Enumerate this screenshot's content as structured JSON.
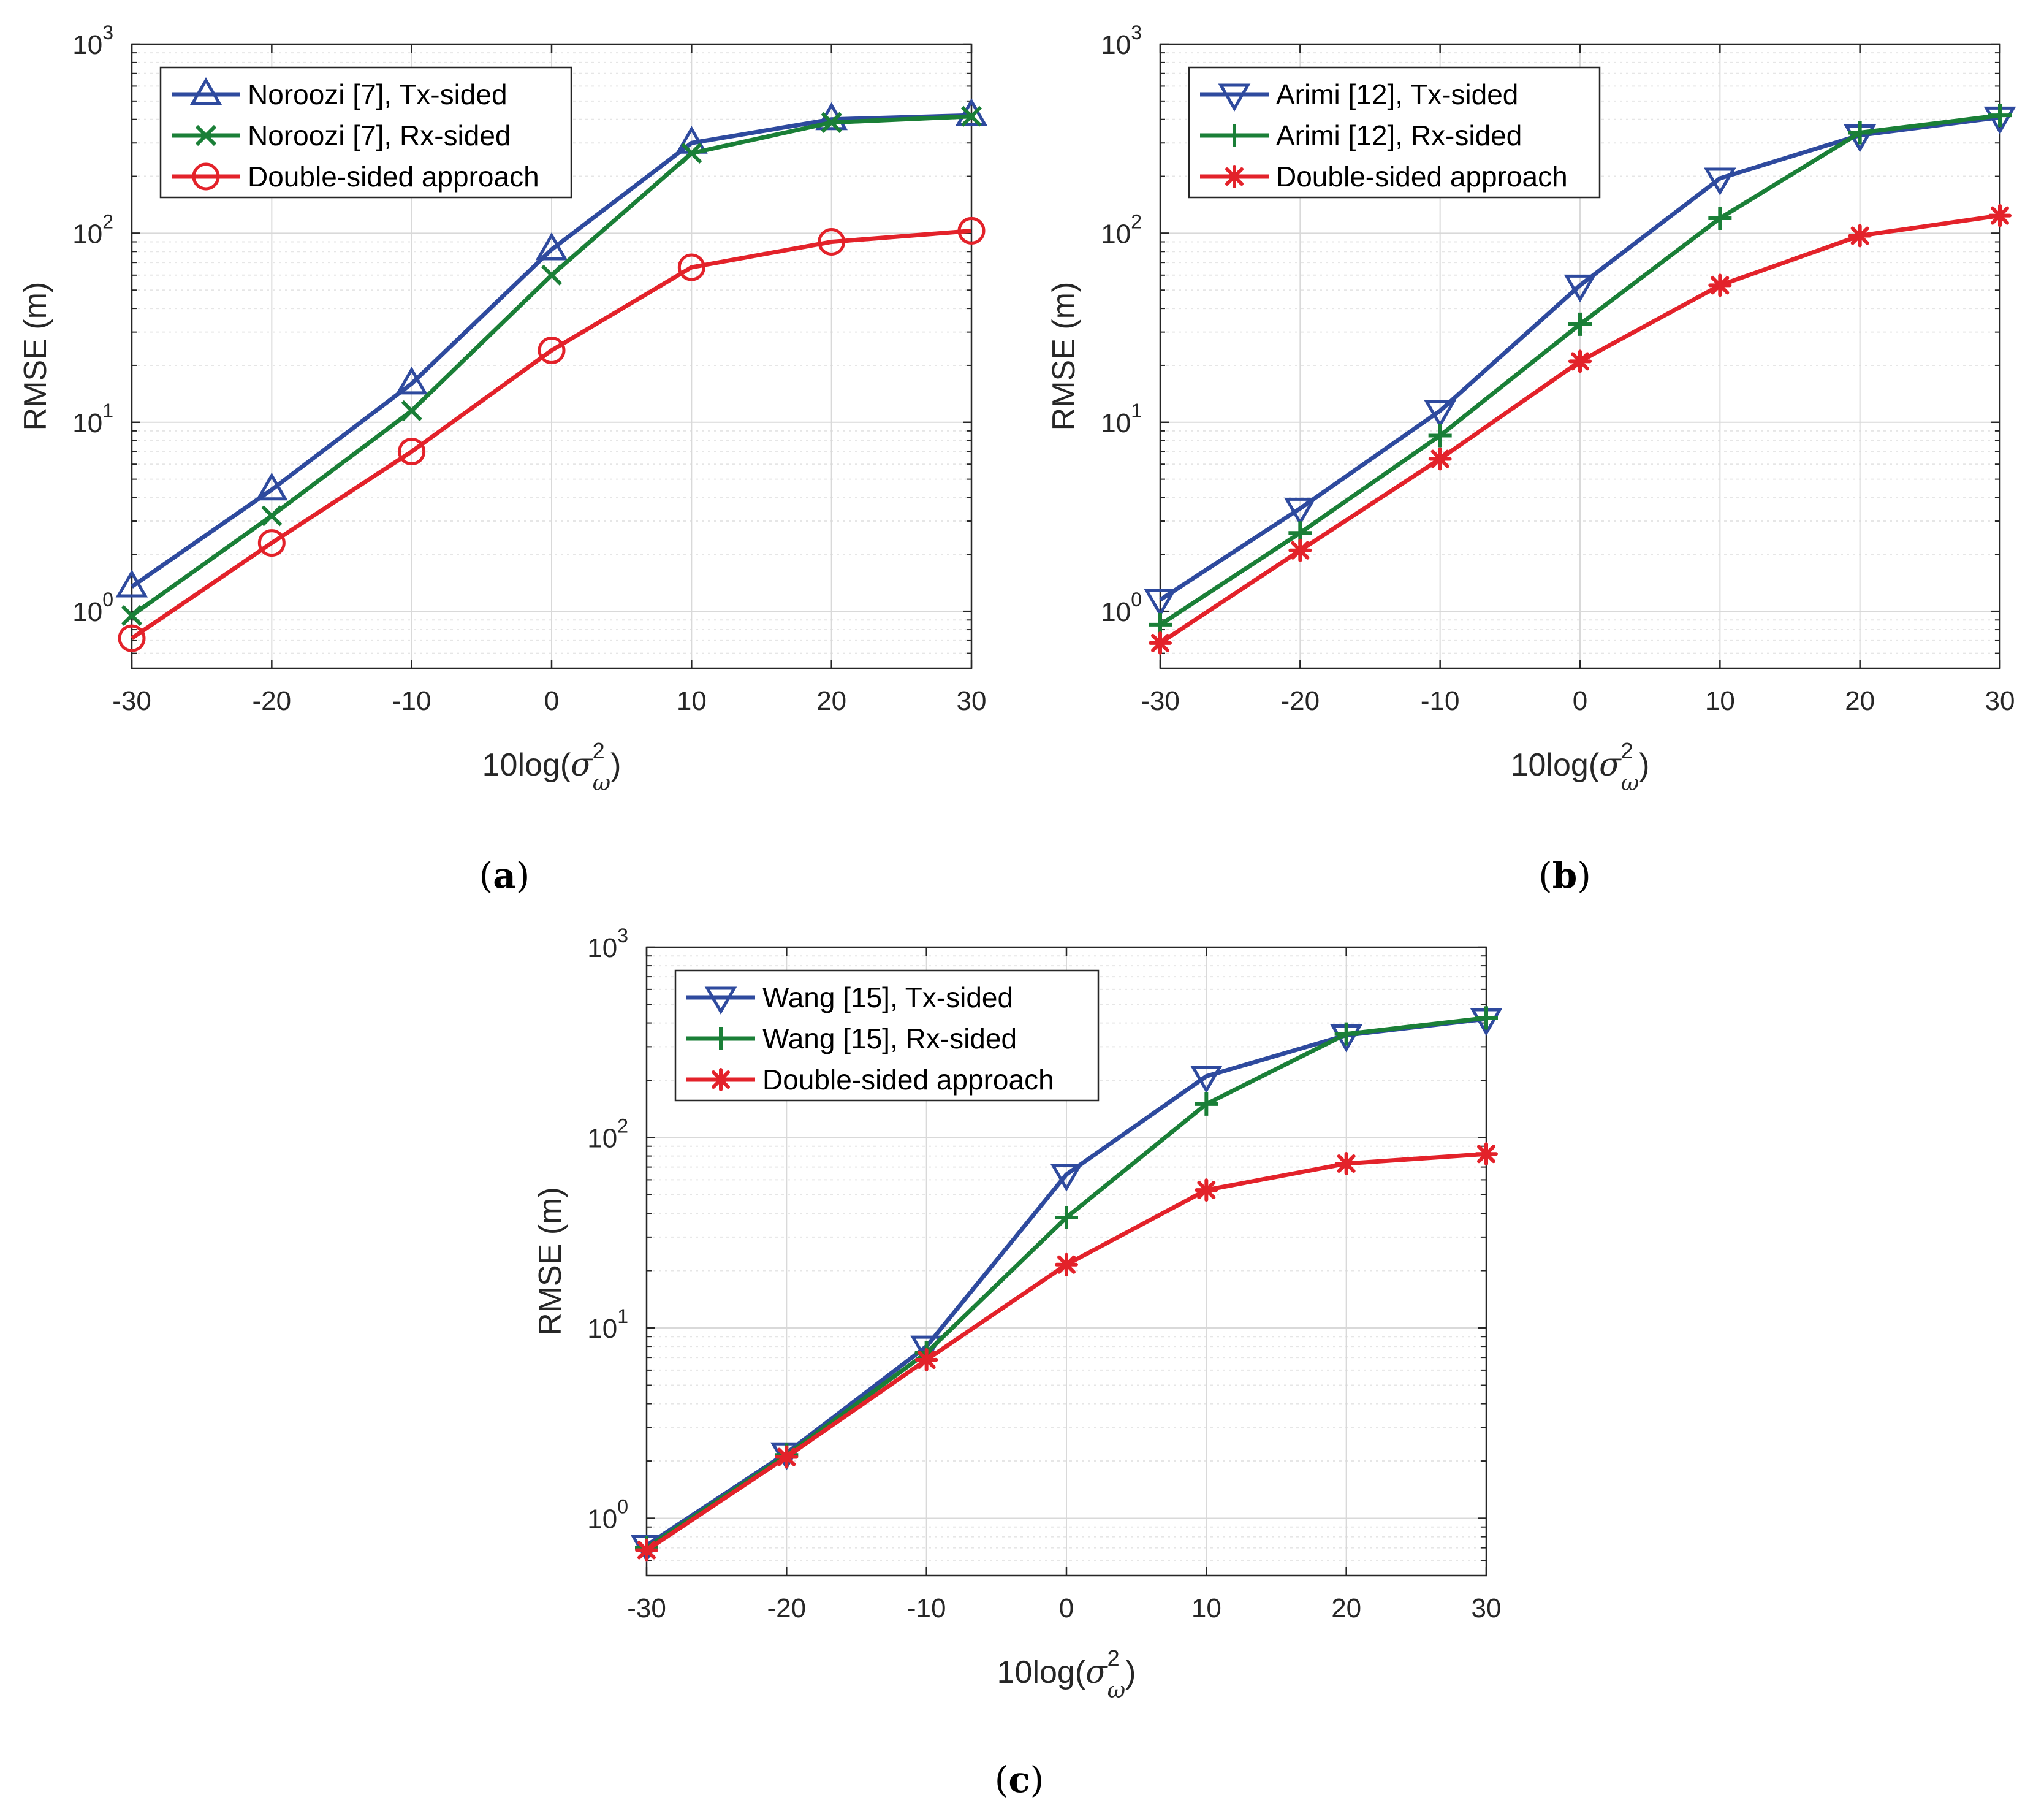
{
  "chart_data": [
    {
      "type": "line",
      "scale": "log-y",
      "caption": "(a)",
      "xlabel": "10log(σ²ω)",
      "xlabel_base": "10log(",
      "xlabel_sym": "σ",
      "xlabel_sup": "2",
      "xlabel_sub": "ω",
      "xlabel_close": ")",
      "ylabel": "RMSE (m)",
      "x": [
        -30,
        -20,
        -10,
        0,
        10,
        20,
        30
      ],
      "xticks": [
        "-30",
        "-20",
        "-10",
        "0",
        "10",
        "20",
        "30"
      ],
      "xlim": [
        -30,
        30
      ],
      "ylim": [
        0.5,
        1000
      ],
      "ytick_base": "10",
      "yticks": [
        {
          "exp": "0",
          "value": 1
        },
        {
          "exp": "1",
          "value": 10
        },
        {
          "exp": "2",
          "value": 100
        },
        {
          "exp": "3",
          "value": 1000
        }
      ],
      "grid": true,
      "legend_position": "top-left",
      "series": [
        {
          "name": "Noroozi [7], Tx-sided",
          "color": "#2E4A9E",
          "marker": "triangle-up",
          "values": [
            1.35,
            4.4,
            16,
            82,
            300,
            400,
            420
          ]
        },
        {
          "name": "Noroozi [7], Rx-sided",
          "color": "#1A7F37",
          "marker": "x",
          "values": [
            0.95,
            3.2,
            11.5,
            60,
            265,
            385,
            415
          ]
        },
        {
          "name": "Double-sided approach",
          "color": "#E3222A",
          "marker": "circle",
          "values": [
            0.72,
            2.3,
            7.0,
            24,
            66,
            90,
            103
          ]
        }
      ]
    },
    {
      "type": "line",
      "scale": "log-y",
      "caption": "(b)",
      "xlabel": "10log(σ²ω)",
      "xlabel_base": "10log(",
      "xlabel_sym": "σ",
      "xlabel_sup": "2",
      "xlabel_sub": "ω",
      "xlabel_close": ")",
      "ylabel": "RMSE (m)",
      "x": [
        -30,
        -20,
        -10,
        0,
        10,
        20,
        30
      ],
      "xticks": [
        "-30",
        "-20",
        "-10",
        "0",
        "10",
        "20",
        "30"
      ],
      "xlim": [
        -30,
        30
      ],
      "ylim": [
        0.5,
        1000
      ],
      "ytick_base": "10",
      "yticks": [
        {
          "exp": "0",
          "value": 1
        },
        {
          "exp": "1",
          "value": 10
        },
        {
          "exp": "2",
          "value": 100
        },
        {
          "exp": "3",
          "value": 1000
        }
      ],
      "grid": true,
      "legend_position": "top-left",
      "series": [
        {
          "name": "Arimi [12], Tx-sided",
          "color": "#2E4A9E",
          "marker": "triangle-down",
          "values": [
            1.15,
            3.5,
            11.5,
            53,
            195,
            330,
            410
          ]
        },
        {
          "name": "Arimi [12], Rx-sided",
          "color": "#1A7F37",
          "marker": "plus",
          "values": [
            0.85,
            2.6,
            8.5,
            33,
            120,
            340,
            420
          ]
        },
        {
          "name": "Double-sided approach",
          "color": "#E3222A",
          "marker": "asterisk",
          "values": [
            0.68,
            2.1,
            6.4,
            21,
            53,
            97,
            124
          ]
        }
      ]
    },
    {
      "type": "line",
      "scale": "log-y",
      "caption": "(c)",
      "xlabel": "10log(σ²ω)",
      "xlabel_base": "10log(",
      "xlabel_sym": "σ",
      "xlabel_sup": "2",
      "xlabel_sub": "ω",
      "xlabel_close": ")",
      "ylabel": "RMSE (m)",
      "x": [
        -30,
        -20,
        -10,
        0,
        10,
        20,
        30
      ],
      "xticks": [
        "-30",
        "-20",
        "-10",
        "0",
        "10",
        "20",
        "30"
      ],
      "xlim": [
        -30,
        30
      ],
      "ylim": [
        0.5,
        1000
      ],
      "ytick_base": "10",
      "yticks": [
        {
          "exp": "0",
          "value": 1
        },
        {
          "exp": "1",
          "value": 10
        },
        {
          "exp": "2",
          "value": 100
        },
        {
          "exp": "3",
          "value": 1000
        }
      ],
      "grid": true,
      "legend_position": "top-left",
      "series": [
        {
          "name": "Wang [15], Tx-sided",
          "color": "#2E4A9E",
          "marker": "triangle-down",
          "values": [
            0.72,
            2.2,
            8.0,
            64,
            210,
            345,
            420
          ]
        },
        {
          "name": "Wang [15], Rx-sided",
          "color": "#1A7F37",
          "marker": "plus",
          "values": [
            0.7,
            2.15,
            7.4,
            38,
            150,
            350,
            425
          ]
        },
        {
          "name": "Double-sided approach",
          "color": "#E3222A",
          "marker": "asterisk",
          "values": [
            0.68,
            2.1,
            6.8,
            21.5,
            53,
            73,
            82
          ]
        }
      ]
    }
  ]
}
